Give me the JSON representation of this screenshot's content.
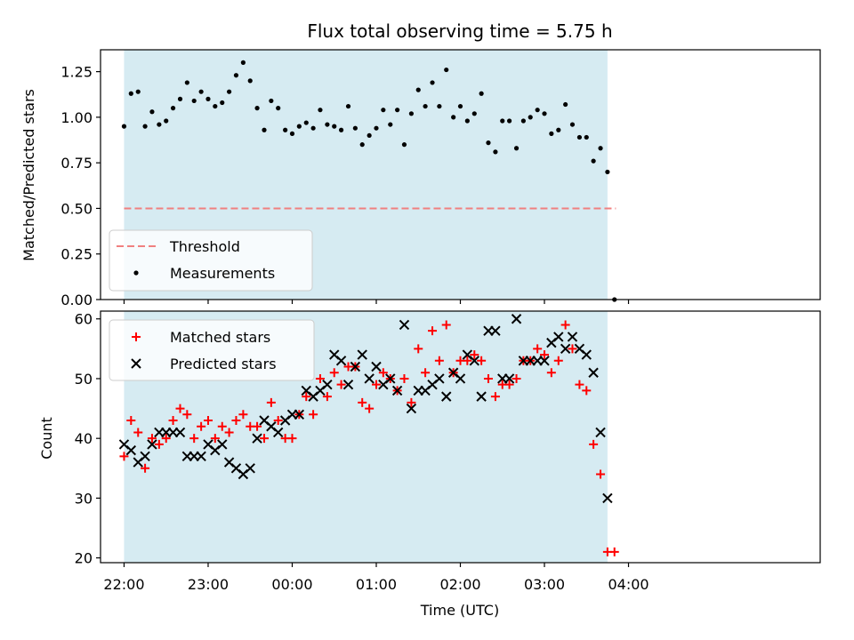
{
  "chart_data": [
    {
      "type": "scatter",
      "title": "Flux total observing time = 5.75 h",
      "xlabel": "",
      "ylabel": "Matched/Predicted stars",
      "x_unit": "hours since 22:00 UTC",
      "xlim": [
        -0.28,
        8.28
      ],
      "ylim": [
        0,
        1.37
      ],
      "yticks": [
        0.0,
        0.25,
        0.5,
        0.75,
        1.0,
        1.25
      ],
      "ytick_labels": [
        "0.00",
        "0.25",
        "0.50",
        "0.75",
        "1.00",
        "1.25"
      ],
      "observing_window": [
        0.0,
        5.75
      ],
      "threshold": {
        "label": "Threshold",
        "value": 0.5,
        "x_range": [
          0.0,
          5.85
        ],
        "color": "#f08080"
      },
      "legend": {
        "location": "lower-left",
        "entries": [
          "Threshold",
          "Measurements"
        ]
      },
      "series": [
        {
          "name": "Measurements",
          "color": "#000000",
          "x": [
            0.0,
            0.083,
            0.167,
            0.25,
            0.333,
            0.417,
            0.5,
            0.583,
            0.667,
            0.75,
            0.833,
            0.917,
            1.0,
            1.083,
            1.167,
            1.25,
            1.333,
            1.417,
            1.5,
            1.583,
            1.667,
            1.75,
            1.833,
            1.917,
            2.0,
            2.083,
            2.167,
            2.25,
            2.333,
            2.417,
            2.5,
            2.583,
            2.667,
            2.75,
            2.833,
            2.917,
            3.0,
            3.083,
            3.167,
            3.25,
            3.333,
            3.417,
            3.5,
            3.583,
            3.667,
            3.75,
            3.833,
            3.917,
            4.0,
            4.083,
            4.167,
            4.25,
            4.333,
            4.417,
            4.5,
            4.583,
            4.667,
            4.75,
            4.833,
            4.917,
            5.0,
            5.083,
            5.167,
            5.25,
            5.333,
            5.417,
            5.5,
            5.583,
            5.667,
            5.75,
            5.833
          ],
          "y": [
            0.95,
            1.13,
            1.14,
            0.95,
            1.03,
            0.96,
            0.98,
            1.05,
            1.1,
            1.19,
            1.09,
            1.14,
            1.1,
            1.06,
            1.08,
            1.14,
            1.23,
            1.3,
            1.2,
            1.05,
            0.93,
            1.09,
            1.05,
            0.93,
            0.91,
            0.95,
            0.97,
            0.94,
            1.04,
            0.96,
            0.95,
            0.93,
            1.06,
            0.94,
            0.85,
            0.9,
            0.94,
            1.04,
            0.96,
            1.04,
            0.85,
            1.02,
            1.15,
            1.06,
            1.19,
            1.06,
            1.26,
            1.0,
            1.06,
            0.98,
            1.02,
            1.13,
            0.86,
            0.81,
            0.98,
            0.98,
            0.83,
            0.98,
            1.0,
            1.04,
            1.02,
            0.91,
            0.93,
            1.07,
            0.96,
            0.89,
            0.89,
            0.76,
            0.83,
            0.7,
            0.0
          ]
        }
      ]
    },
    {
      "type": "scatter",
      "title": "",
      "xlabel": "Time (UTC)",
      "ylabel": "Count",
      "x_unit": "hours since 22:00 UTC",
      "xlim": [
        -0.28,
        8.28
      ],
      "ylim": [
        19.2,
        61.3
      ],
      "yticks": [
        20,
        30,
        40,
        50,
        60
      ],
      "ytick_labels": [
        "20",
        "30",
        "40",
        "50",
        "60"
      ],
      "xticks": [
        0,
        1,
        2,
        3,
        4,
        5,
        6
      ],
      "xtick_labels": [
        "22:00",
        "23:00",
        "00:00",
        "01:00",
        "02:00",
        "03:00",
        "04:00"
      ],
      "observing_window": [
        0.0,
        5.75
      ],
      "legend": {
        "location": "upper-left",
        "entries": [
          "Matched stars",
          "Predicted stars"
        ]
      },
      "series": [
        {
          "name": "Matched stars",
          "marker": "+",
          "color": "#ff0000",
          "x": [
            0.0,
            0.083,
            0.167,
            0.25,
            0.333,
            0.417,
            0.5,
            0.583,
            0.667,
            0.75,
            0.833,
            0.917,
            1.0,
            1.083,
            1.167,
            1.25,
            1.333,
            1.417,
            1.5,
            1.583,
            1.667,
            1.75,
            1.833,
            1.917,
            2.0,
            2.083,
            2.167,
            2.25,
            2.333,
            2.417,
            2.5,
            2.583,
            2.667,
            2.75,
            2.833,
            2.917,
            3.0,
            3.083,
            3.167,
            3.25,
            3.333,
            3.417,
            3.5,
            3.583,
            3.667,
            3.75,
            3.833,
            3.917,
            4.0,
            4.083,
            4.167,
            4.25,
            4.333,
            4.417,
            4.5,
            4.583,
            4.667,
            4.75,
            4.833,
            4.917,
            5.0,
            5.083,
            5.167,
            5.25,
            5.333,
            5.417,
            5.5,
            5.583,
            5.667,
            5.75,
            5.833
          ],
          "y": [
            37,
            43,
            41,
            35,
            40,
            39,
            40,
            43,
            45,
            44,
            40,
            42,
            43,
            40,
            42,
            41,
            43,
            44,
            42,
            42,
            40,
            46,
            43,
            40,
            40,
            44,
            47,
            44,
            50,
            47,
            51,
            49,
            52,
            52,
            46,
            45,
            49,
            51,
            50,
            48,
            50,
            46,
            55,
            51,
            58,
            53,
            59,
            51,
            53,
            53,
            54,
            53,
            50,
            47,
            49,
            49,
            50,
            53,
            53,
            55,
            54,
            51,
            53,
            59,
            55,
            49,
            48,
            39,
            34,
            21,
            21
          ]
        },
        {
          "name": "Predicted stars",
          "marker": "x",
          "color": "#000000",
          "x": [
            0.0,
            0.083,
            0.167,
            0.25,
            0.333,
            0.417,
            0.5,
            0.583,
            0.667,
            0.75,
            0.833,
            0.917,
            1.0,
            1.083,
            1.167,
            1.25,
            1.333,
            1.417,
            1.5,
            1.583,
            1.667,
            1.75,
            1.833,
            1.917,
            2.0,
            2.083,
            2.167,
            2.25,
            2.333,
            2.417,
            2.5,
            2.583,
            2.667,
            2.75,
            2.833,
            2.917,
            3.0,
            3.083,
            3.167,
            3.25,
            3.333,
            3.417,
            3.5,
            3.583,
            3.667,
            3.75,
            3.833,
            3.917,
            4.0,
            4.083,
            4.167,
            4.25,
            4.333,
            4.417,
            4.5,
            4.583,
            4.667,
            4.75,
            4.833,
            4.917,
            5.0,
            5.083,
            5.167,
            5.25,
            5.333,
            5.417,
            5.5,
            5.583,
            5.667,
            5.75
          ],
          "y": [
            39,
            38,
            36,
            37,
            39,
            41,
            41,
            41,
            41,
            37,
            37,
            37,
            39,
            38,
            39,
            36,
            35,
            34,
            35,
            40,
            43,
            42,
            41,
            43,
            44,
            44,
            48,
            47,
            48,
            49,
            54,
            53,
            49,
            52,
            54,
            50,
            52,
            49,
            50,
            48,
            59,
            45,
            48,
            48,
            49,
            50,
            47,
            51,
            50,
            54,
            53,
            47,
            58,
            58,
            50,
            50,
            60,
            53,
            53,
            53,
            53,
            56,
            57,
            55,
            57,
            55,
            54,
            51,
            41,
            30
          ]
        }
      ]
    }
  ]
}
